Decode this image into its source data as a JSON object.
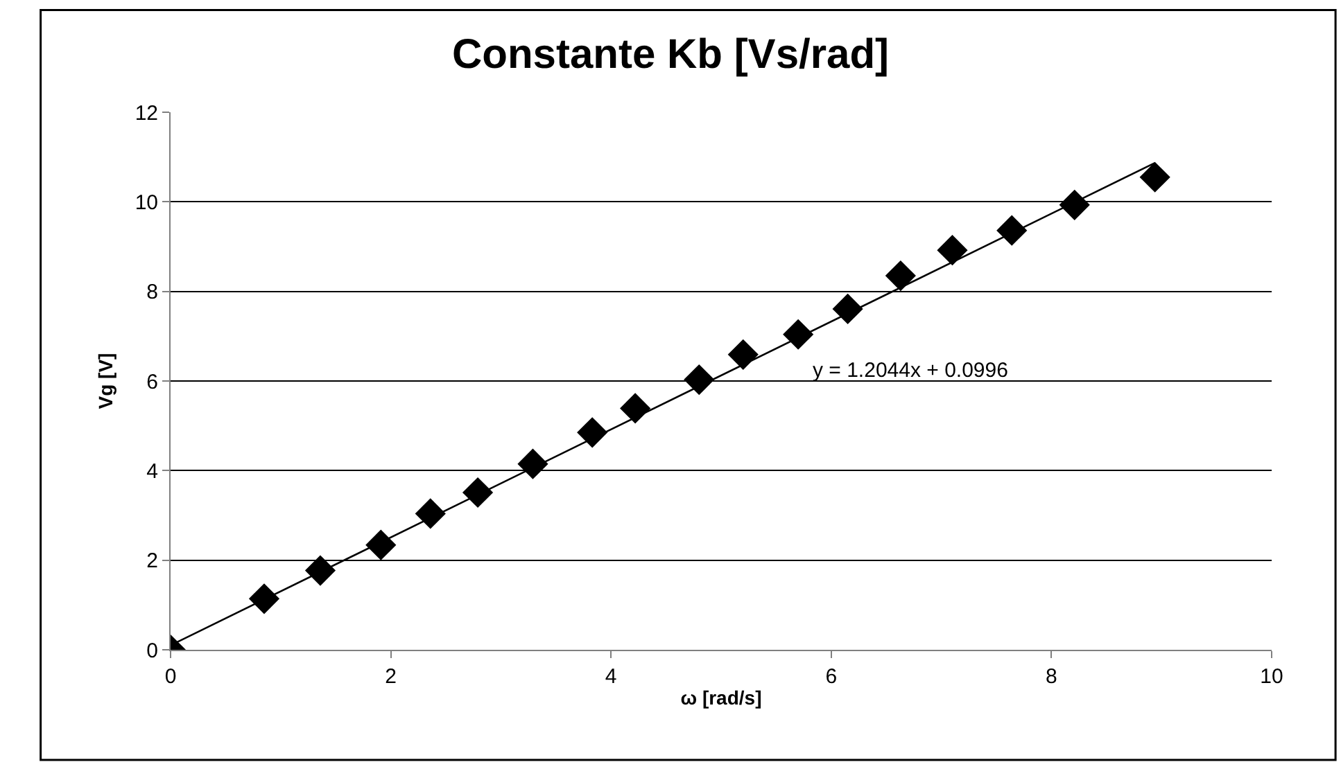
{
  "chart_data": {
    "type": "scatter",
    "title": "Constante Kb [Vs/rad]",
    "xlabel": "ω [rad/s]",
    "ylabel": "Vg [V]",
    "annotations": [
      "y = 1.2044x + 0.0996"
    ],
    "series": [
      {
        "color": "#000000",
        "marker": "diamond",
        "x": [
          0,
          0.85,
          1.36,
          1.91,
          2.36,
          2.79,
          3.29,
          3.83,
          4.22,
          4.8,
          5.2,
          5.7,
          6.15,
          6.63,
          7.1,
          7.64,
          8.21,
          8.94
        ],
        "values": [
          0,
          1.14,
          1.77,
          2.34,
          3.04,
          3.51,
          4.15,
          4.85,
          5.39,
          6.03,
          6.59,
          7.04,
          7.61,
          8.35,
          8.92,
          9.36,
          9.93,
          10.55
        ]
      },
      {
        "type": "line",
        "color": "#000000",
        "marker": "none",
        "line_style": "solid",
        "x": [
          0,
          8.94
        ],
        "values": [
          0.1,
          10.87
        ]
      }
    ],
    "xlim": [
      0,
      10
    ],
    "xticks": [
      0,
      2,
      4,
      6,
      8,
      10
    ],
    "ylim": [
      0,
      12
    ],
    "yticks": [
      0,
      2,
      4,
      6,
      8,
      10,
      12
    ],
    "grid": "y"
  }
}
